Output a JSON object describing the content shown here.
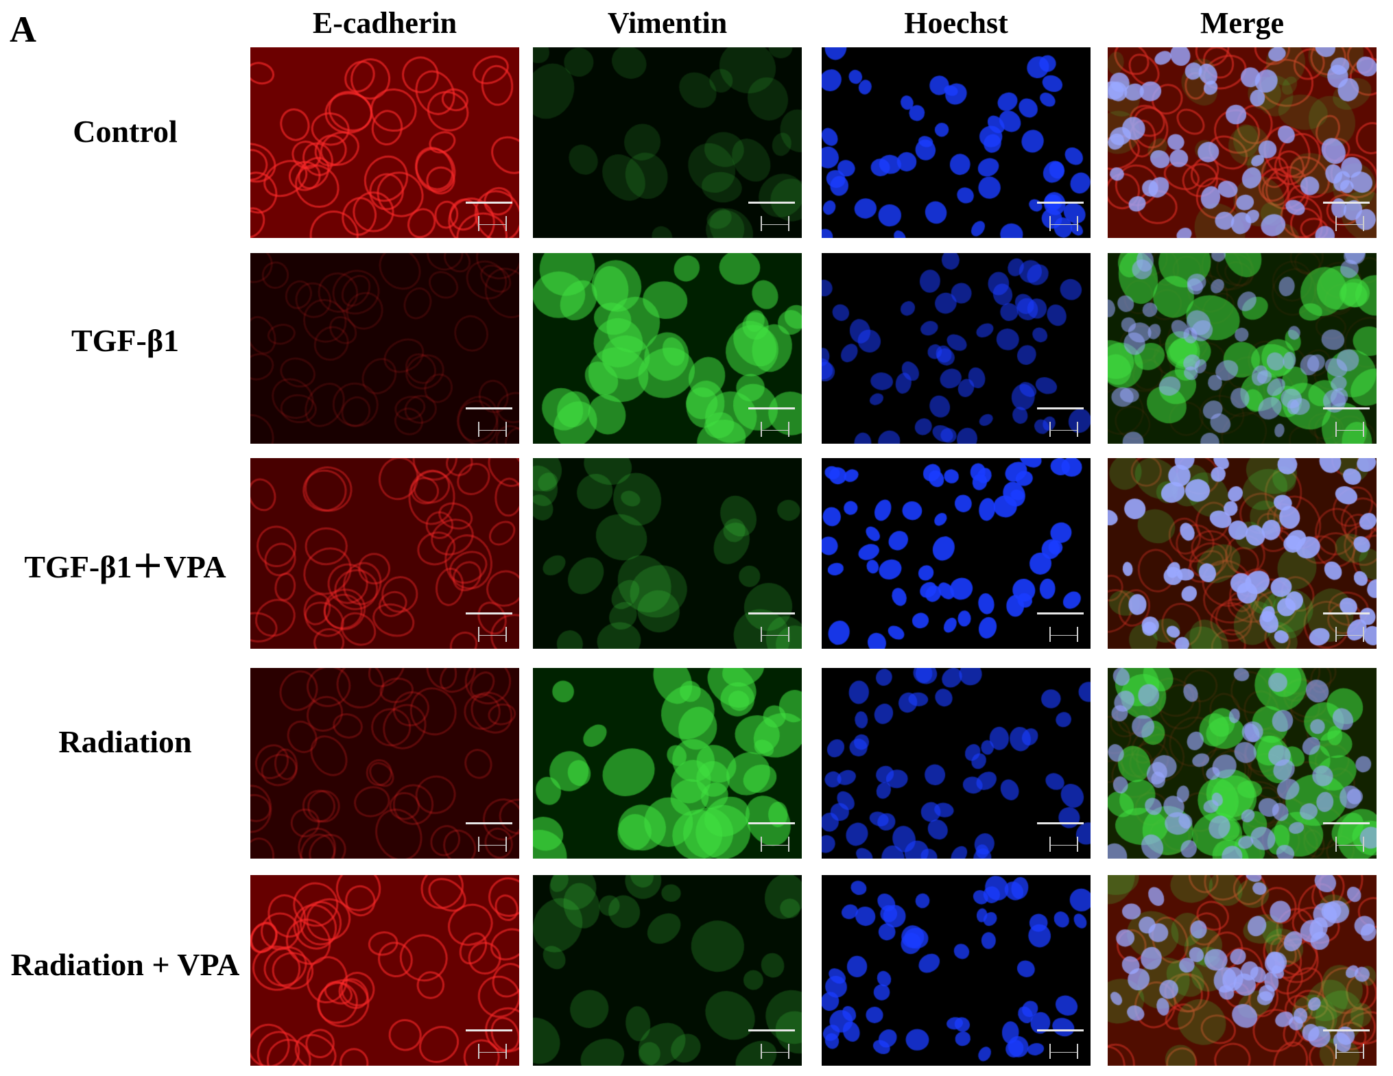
{
  "figure": {
    "panel_label": "A",
    "columns": [
      {
        "label": "E-cadherin",
        "channel_color": "#ff2020"
      },
      {
        "label": "Vimentin",
        "channel_color": "#30e030"
      },
      {
        "label": "Hoechst",
        "channel_color": "#2040ff"
      },
      {
        "label": "Merge",
        "channel_color": "#c04070"
      }
    ],
    "rows": [
      {
        "label": "Control",
        "intensity": {
          "red": 0.9,
          "green": 0.25,
          "blue": 0.9
        }
      },
      {
        "label": "TGF-β1",
        "intensity": {
          "red": 0.2,
          "green": 0.9,
          "blue": 0.6
        }
      },
      {
        "label": "TGF-β1＋VPA",
        "intensity": {
          "red": 0.6,
          "green": 0.35,
          "blue": 1.0
        }
      },
      {
        "label": "Radiation",
        "intensity": {
          "red": 0.35,
          "green": 0.95,
          "blue": 0.7
        }
      },
      {
        "label": "Radiation + VPA",
        "intensity": {
          "red": 0.85,
          "green": 0.35,
          "blue": 0.85
        }
      }
    ]
  }
}
